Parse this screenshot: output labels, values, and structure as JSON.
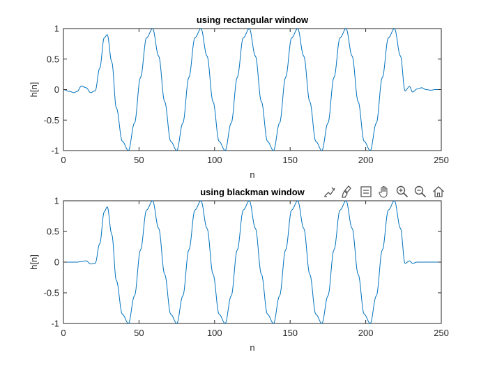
{
  "figure": {
    "toolbar": {
      "icons": [
        "brush-data-icon",
        "highlight-brush-icon",
        "datatip-icon",
        "pan-icon",
        "zoom-in-icon",
        "zoom-out-icon",
        "home-icon"
      ]
    }
  },
  "chart_data": [
    {
      "type": "line",
      "title": "using rectangular window",
      "xlabel": "n",
      "ylabel": "h[n]",
      "xlim": [
        0,
        250
      ],
      "ylim": [
        -1,
        1
      ],
      "xticks": [
        "0",
        "50",
        "100",
        "150",
        "200",
        "250"
      ],
      "yticks": [
        "-1",
        "-0.5",
        "0",
        "0.5",
        "1"
      ],
      "grid": false,
      "series": [
        {
          "color": "#0072bd",
          "x": [
            0,
            4,
            7,
            9,
            12,
            15,
            18,
            21,
            24,
            27,
            29,
            32,
            35,
            39,
            43,
            47,
            51,
            55,
            59,
            63,
            67,
            71,
            75,
            79,
            83,
            87,
            91,
            95,
            99,
            103,
            107,
            111,
            115,
            119,
            123,
            127,
            131,
            135,
            139,
            143,
            147,
            151,
            155,
            159,
            163,
            167,
            171,
            175,
            179,
            183,
            187,
            191,
            195,
            199,
            203,
            207,
            211,
            215,
            219,
            223,
            226,
            229,
            231,
            234,
            237,
            240,
            243,
            246,
            250
          ],
          "y": [
            0.0,
            -0.03,
            -0.05,
            -0.03,
            0.06,
            0.03,
            -0.05,
            -0.02,
            0.35,
            0.85,
            0.9,
            0.45,
            -0.3,
            -0.85,
            -1.0,
            -0.55,
            0.2,
            0.85,
            1.0,
            0.55,
            -0.2,
            -0.85,
            -1.0,
            -0.55,
            0.2,
            0.85,
            1.0,
            0.55,
            -0.2,
            -0.85,
            -1.0,
            -0.55,
            0.2,
            0.85,
            1.0,
            0.55,
            -0.2,
            -0.85,
            -1.0,
            -0.55,
            0.2,
            0.85,
            1.0,
            0.55,
            -0.2,
            -0.85,
            -1.0,
            -0.55,
            0.2,
            0.85,
            1.0,
            0.55,
            -0.2,
            -0.85,
            -1.0,
            -0.55,
            0.2,
            0.85,
            1.0,
            0.55,
            -0.02,
            0.05,
            -0.04,
            0.01,
            0.03,
            0.0,
            -0.01,
            0.0,
            0.0
          ]
        }
      ]
    },
    {
      "type": "line",
      "title": "using blackman window",
      "xlabel": "n",
      "ylabel": "h[n]",
      "xlim": [
        0,
        250
      ],
      "ylim": [
        -1,
        1
      ],
      "xticks": [
        "0",
        "50",
        "100",
        "150",
        "200",
        "250"
      ],
      "yticks": [
        "-1",
        "-0.5",
        "0",
        "0.5",
        "1"
      ],
      "grid": false,
      "series": [
        {
          "color": "#0072bd",
          "x": [
            0,
            4,
            7,
            9,
            12,
            15,
            18,
            21,
            24,
            27,
            29,
            32,
            35,
            39,
            43,
            47,
            51,
            55,
            59,
            63,
            67,
            71,
            75,
            79,
            83,
            87,
            91,
            95,
            99,
            103,
            107,
            111,
            115,
            119,
            123,
            127,
            131,
            135,
            139,
            143,
            147,
            151,
            155,
            159,
            163,
            167,
            171,
            175,
            179,
            183,
            187,
            191,
            195,
            199,
            203,
            207,
            211,
            215,
            219,
            223,
            226,
            229,
            231,
            234,
            237,
            240,
            243,
            246,
            250
          ],
          "y": [
            0.0,
            0.0,
            0.0,
            0.0,
            0.01,
            0.02,
            -0.03,
            -0.02,
            0.3,
            0.82,
            0.9,
            0.45,
            -0.3,
            -0.85,
            -1.0,
            -0.55,
            0.2,
            0.85,
            1.0,
            0.55,
            -0.2,
            -0.85,
            -1.0,
            -0.55,
            0.2,
            0.85,
            1.0,
            0.55,
            -0.2,
            -0.85,
            -1.0,
            -0.55,
            0.2,
            0.85,
            1.0,
            0.55,
            -0.2,
            -0.85,
            -1.0,
            -0.55,
            0.2,
            0.85,
            1.0,
            0.55,
            -0.2,
            -0.85,
            -1.0,
            -0.55,
            0.2,
            0.85,
            1.0,
            0.55,
            -0.2,
            -0.85,
            -1.0,
            -0.55,
            0.2,
            0.85,
            1.0,
            0.55,
            -0.02,
            0.02,
            -0.02,
            0.0,
            0.0,
            0.0,
            0.0,
            0.0,
            0.0
          ]
        }
      ]
    }
  ]
}
